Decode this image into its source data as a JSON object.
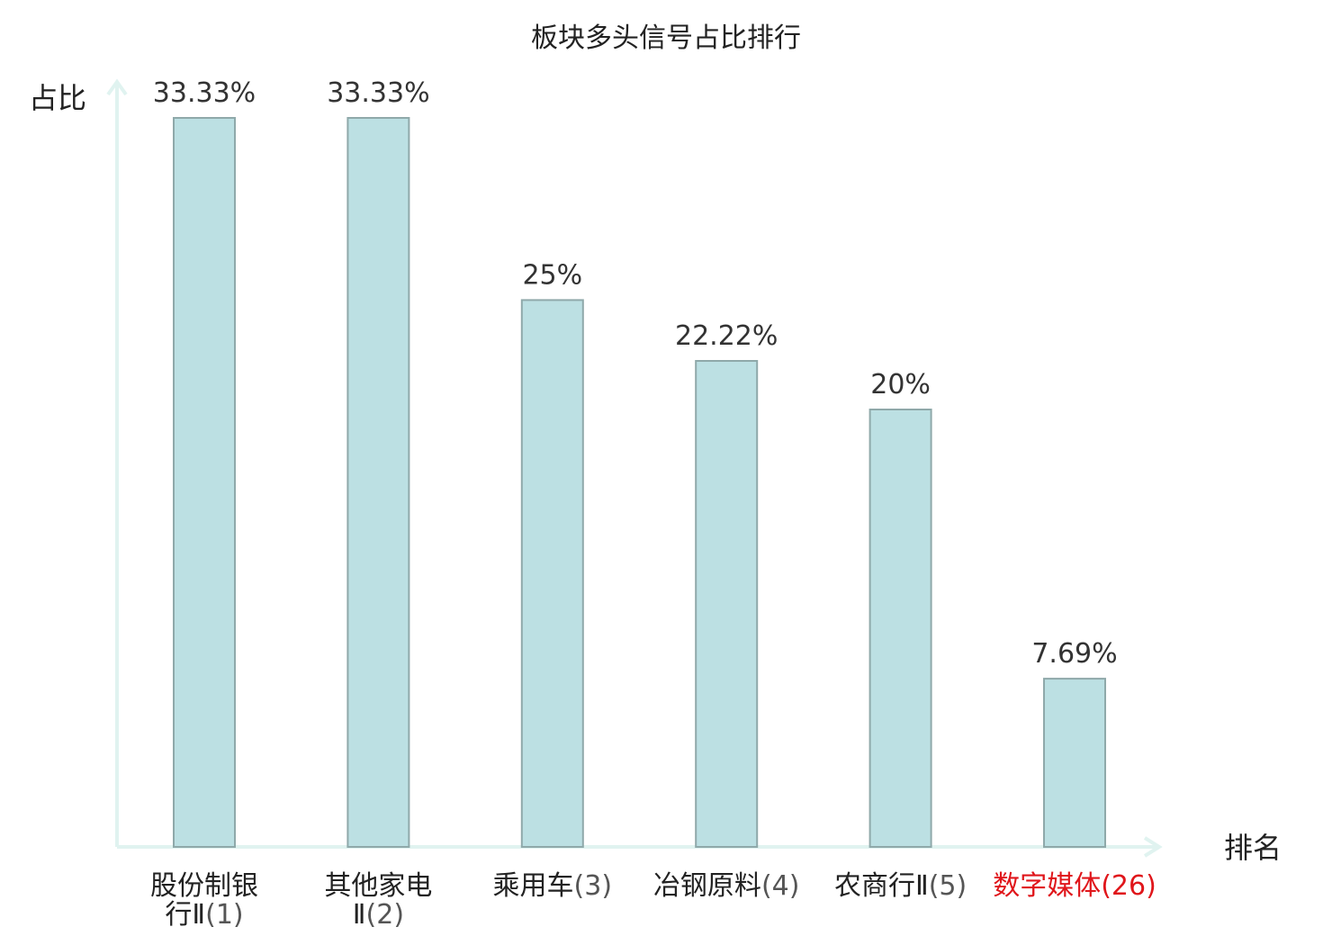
{
  "chart_data": {
    "type": "bar",
    "title": "板块多头信号占比排行",
    "xlabel": "排名",
    "ylabel": "占比",
    "ylim": [
      0,
      36
    ],
    "grid": false,
    "categories": [
      {
        "lines": [
          {
            "name": "股份制银",
            "rank": ""
          },
          {
            "name": "行Ⅱ",
            "rank": "(1)"
          }
        ],
        "highlight": false
      },
      {
        "lines": [
          {
            "name": "其他家电",
            "rank": ""
          },
          {
            "name": "Ⅱ",
            "rank": "(2)"
          }
        ],
        "highlight": false
      },
      {
        "lines": [
          {
            "name": "乘用车",
            "rank": "(3)"
          }
        ],
        "highlight": false
      },
      {
        "lines": [
          {
            "name": "冶钢原料",
            "rank": "(4)"
          }
        ],
        "highlight": false
      },
      {
        "lines": [
          {
            "name": "农商行Ⅱ",
            "rank": "(5)"
          }
        ],
        "highlight": false
      },
      {
        "lines": [
          {
            "name": "数字媒体",
            "rank": "(26)"
          }
        ],
        "highlight": true
      }
    ],
    "values": [
      33.33,
      33.33,
      25,
      22.22,
      20,
      7.69
    ],
    "value_labels": [
      "33.33%",
      "33.33%",
      "25%",
      "22.22%",
      "20%",
      "7.69%"
    ]
  },
  "colors": {
    "bar_fill": "#bce0e3",
    "bar_stroke": "#8fa9aa",
    "axis": "#e0f3f0",
    "highlight": "#e0161b"
  }
}
